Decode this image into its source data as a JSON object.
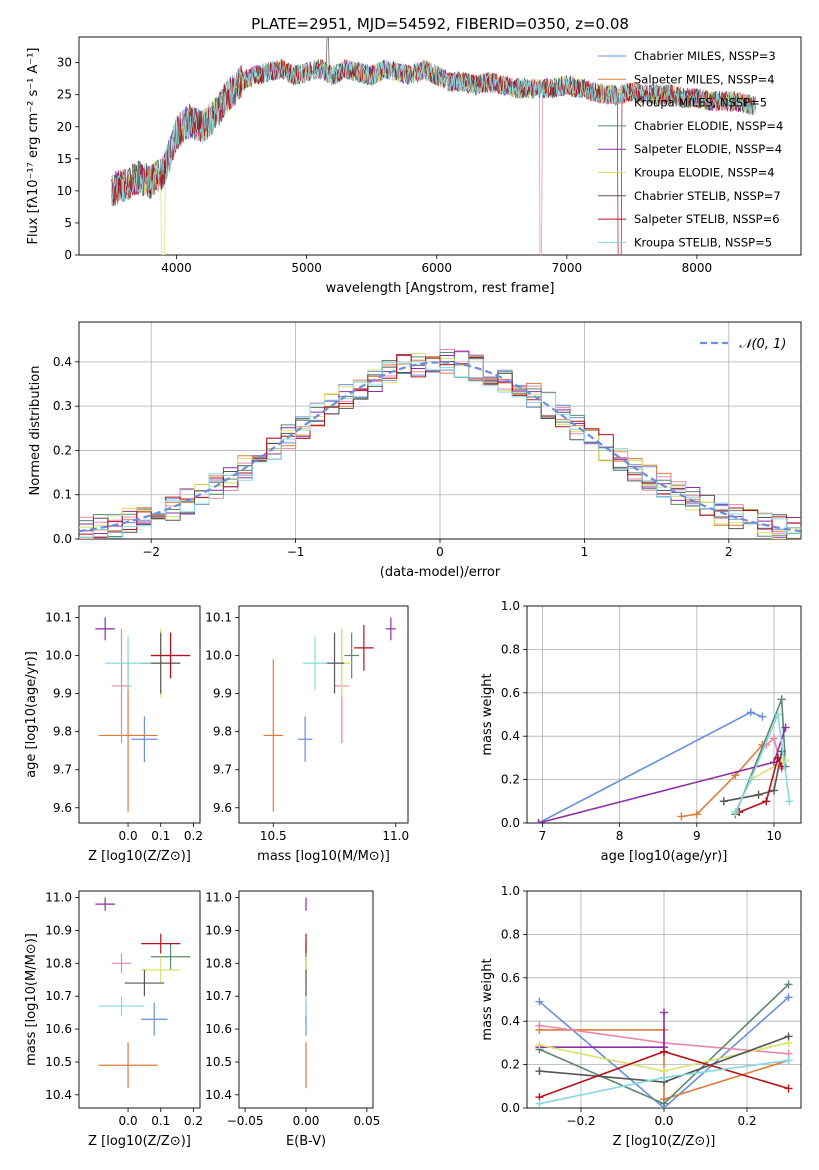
{
  "figure_title": "PLATE=2951, MJD=54592, FIBERID=0350, z=0.08",
  "colors": {
    "c1": "#6a8fdc",
    "c2": "#e07b39",
    "c3": "#e887a8",
    "c4": "#5a8a6a",
    "c5": "#8e2fa8",
    "c6": "#d9e26a",
    "c7": "#555555",
    "c8": "#b5121b",
    "c9": "#86d9e0"
  },
  "chart_data": [
    {
      "type": "line",
      "title": "PLATE=2951, MJD=54592, FIBERID=0350, z=0.08",
      "xlabel": "wavelength [Angstrom, rest frame]",
      "ylabel": "Flux [fλ10⁻¹⁷ erg cm⁻² s⁻¹ A⁻¹]",
      "xlim": [
        3250,
        8800
      ],
      "ylim": [
        0,
        34
      ],
      "xticks": [
        "4000",
        "5000",
        "6000",
        "7000",
        "8000"
      ],
      "yticks": [
        "0",
        "5",
        "10",
        "15",
        "20",
        "25",
        "30"
      ],
      "grid": false,
      "legend_position": "upper right",
      "legend": [
        "Chabrier MILES, NSSP=3",
        "Salpeter MILES, NSSP=4",
        "Kroupa MILES, NSSP=5",
        "Chabrier ELODIE, NSSP=4",
        "Salpeter ELODIE, NSSP=4",
        "Kroupa ELODIE, NSSP=4",
        "Chabrier STELIB, NSSP=7",
        "Salpeter STELIB, NSSP=6",
        "Kroupa STELIB, NSSP=5"
      ],
      "envelope": {
        "x": [
          3500,
          3600,
          3700,
          3800,
          3900,
          4000,
          4100,
          4200,
          4300,
          4400,
          4500,
          4600,
          4700,
          4800,
          4900,
          5000,
          5100,
          5200,
          5300,
          5400,
          5500,
          5600,
          5700,
          5800,
          5900,
          6000,
          6100,
          6200,
          6300,
          6400,
          6500,
          6600,
          6700,
          6800,
          6900,
          7000,
          7100,
          7200,
          7300,
          7400,
          7500,
          7600,
          7700,
          7800,
          7900,
          8000,
          8100,
          8200,
          8300,
          8400,
          8500
        ],
        "y": [
          10,
          11,
          12,
          11.5,
          13,
          19,
          21,
          20,
          22,
          25,
          27,
          28,
          28.5,
          29,
          28,
          28.5,
          29,
          28,
          29,
          28.5,
          28,
          29,
          28.5,
          28,
          29,
          28,
          27,
          27,
          26.5,
          27,
          26.5,
          26,
          26,
          26,
          26,
          26.5,
          26,
          25.5,
          25,
          25,
          25.5,
          25,
          25,
          25,
          24.5,
          24.5,
          24,
          24,
          24,
          23.5,
          23
        ]
      }
    },
    {
      "type": "bar",
      "xlabel": "(data-model)/error",
      "ylabel": "Normed distribution",
      "xlim": [
        -2.5,
        2.5
      ],
      "ylim": [
        0,
        0.49
      ],
      "xticks": [
        "−2",
        "−1",
        "0",
        "1",
        "2"
      ],
      "yticks": [
        "0.0",
        "0.1",
        "0.2",
        "0.3",
        "0.4"
      ],
      "grid": true,
      "legend": [
        "𝒩(0, 1)"
      ],
      "reference_curve": "gaussian"
    },
    {
      "type": "scatter",
      "xlabel": "Z [log10(Z/Z⊙)]",
      "ylabel": "age  [log10(age/yr)]",
      "xlim": [
        -0.15,
        0.22
      ],
      "ylim": [
        9.56,
        10.13
      ],
      "xticks": [
        "0.0",
        "0.1",
        "0.2"
      ],
      "yticks": [
        "9.6",
        "9.7",
        "9.8",
        "9.9",
        "10.0",
        "10.1"
      ],
      "points": [
        [
          0.05,
          9.78
        ],
        [
          0.0,
          9.79
        ],
        [
          -0.02,
          9.92
        ],
        [
          0.13,
          10.0
        ],
        [
          -0.07,
          10.07
        ],
        [
          0.1,
          9.98
        ],
        [
          0.1,
          9.98
        ],
        [
          0.13,
          10.0
        ],
        [
          0.0,
          9.98
        ]
      ]
    },
    {
      "type": "scatter",
      "xlabel": "mass [log10(M/M⊙)]",
      "ylabel": "",
      "xlim": [
        10.36,
        11.05
      ],
      "ylim": [
        9.56,
        10.13
      ],
      "xticks": [
        "10.5",
        "11.0"
      ],
      "yticks": [
        "9.6",
        "9.7",
        "9.8",
        "9.9",
        "10.0",
        "10.1"
      ],
      "points": [
        [
          10.63,
          9.78
        ],
        [
          10.5,
          9.79
        ],
        [
          10.78,
          9.92
        ],
        [
          10.82,
          10.0
        ],
        [
          10.98,
          10.07
        ],
        [
          10.78,
          9.98
        ],
        [
          10.75,
          9.98
        ],
        [
          10.87,
          10.02
        ],
        [
          10.67,
          9.98
        ]
      ]
    },
    {
      "type": "line",
      "xlabel": "age  [log10(age/yr)]",
      "ylabel": "mass weight",
      "xlim": [
        6.8,
        10.35
      ],
      "ylim": [
        0,
        1
      ],
      "xticks": [
        "7",
        "8",
        "9",
        "10"
      ],
      "yticks": [
        "0.0",
        "0.2",
        "0.4",
        "0.6",
        "0.8",
        "1.0"
      ],
      "grid": true
    },
    {
      "type": "scatter",
      "xlabel": "Z [log10(Z/Z⊙)]",
      "ylabel": "mass [log10(M/M⊙)]",
      "xlim": [
        -0.15,
        0.22
      ],
      "ylim": [
        10.36,
        11.02
      ],
      "xticks": [
        "0.0",
        "0.1",
        "0.2"
      ],
      "yticks": [
        "10.4",
        "10.5",
        "10.6",
        "10.7",
        "10.8",
        "10.9",
        "11.0"
      ],
      "points": [
        [
          0.08,
          10.63
        ],
        [
          0.0,
          10.49
        ],
        [
          -0.02,
          10.8
        ],
        [
          0.13,
          10.82
        ],
        [
          -0.07,
          10.98
        ],
        [
          0.1,
          10.78
        ],
        [
          0.05,
          10.74
        ],
        [
          0.1,
          10.86
        ],
        [
          -0.02,
          10.67
        ]
      ]
    },
    {
      "type": "scatter",
      "xlabel": "E(B-V)",
      "ylabel": "",
      "xlim": [
        -0.055,
        0.055
      ],
      "ylim": [
        10.36,
        11.02
      ],
      "xticks": [
        "−0.05",
        "0.00",
        "0.05"
      ],
      "yticks": [
        "10.4",
        "10.5",
        "10.6",
        "10.7",
        "10.8",
        "10.9",
        "11.0"
      ],
      "points": [
        [
          0,
          10.63
        ],
        [
          0,
          10.49
        ],
        [
          0,
          10.8
        ],
        [
          0,
          10.82
        ],
        [
          0,
          10.98
        ],
        [
          0,
          10.78
        ],
        [
          0,
          10.74
        ],
        [
          0,
          10.86
        ],
        [
          0,
          10.67
        ]
      ]
    },
    {
      "type": "line",
      "xlabel": "Z [log10(Z/Z⊙)]",
      "ylabel": "mass weight",
      "xlim": [
        -0.33,
        0.33
      ],
      "ylim": [
        0,
        1
      ],
      "xticks": [
        "−0.2",
        "0.0",
        "0.2"
      ],
      "yticks": [
        "0.0",
        "0.2",
        "0.4",
        "0.6",
        "0.8",
        "1.0"
      ],
      "grid": true
    }
  ]
}
